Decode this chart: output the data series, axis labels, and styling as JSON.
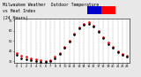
{
  "title_line1": "Milwaukee Weather  Outdoor Temperature",
  "title_line2": "vs Heat Index",
  "title_line3": "(24 Hours)",
  "bg_color": "#e8e8e8",
  "plot_bg": "#ffffff",
  "hours": [
    0,
    1,
    2,
    3,
    4,
    5,
    6,
    7,
    8,
    9,
    10,
    11,
    12,
    13,
    14,
    15,
    16,
    17,
    18,
    19,
    20,
    21,
    22,
    23
  ],
  "temp": [
    38,
    35,
    34,
    33,
    32,
    31,
    30,
    31,
    34,
    38,
    44,
    50,
    57,
    63,
    67,
    68,
    65,
    60,
    54,
    48,
    44,
    40,
    37,
    35
  ],
  "heat_index": [
    36,
    33,
    32,
    31,
    30,
    29,
    29,
    30,
    33,
    37,
    43,
    49,
    56,
    62,
    66,
    67,
    64,
    59,
    53,
    47,
    43,
    39,
    36,
    34
  ],
  "temp_color": "#ff0000",
  "heat_color": "#000000",
  "ylim": [
    28,
    72
  ],
  "yticks": [
    30,
    40,
    50,
    60,
    70
  ],
  "ytick_labels": [
    "30",
    "40",
    "50",
    "60",
    "70"
  ],
  "grid_color": "#888888",
  "title_fontsize": 3.5,
  "tick_fontsize": 2.5,
  "legend_blue": "#0000cc",
  "legend_red": "#ff0000",
  "markersize": 0.9
}
